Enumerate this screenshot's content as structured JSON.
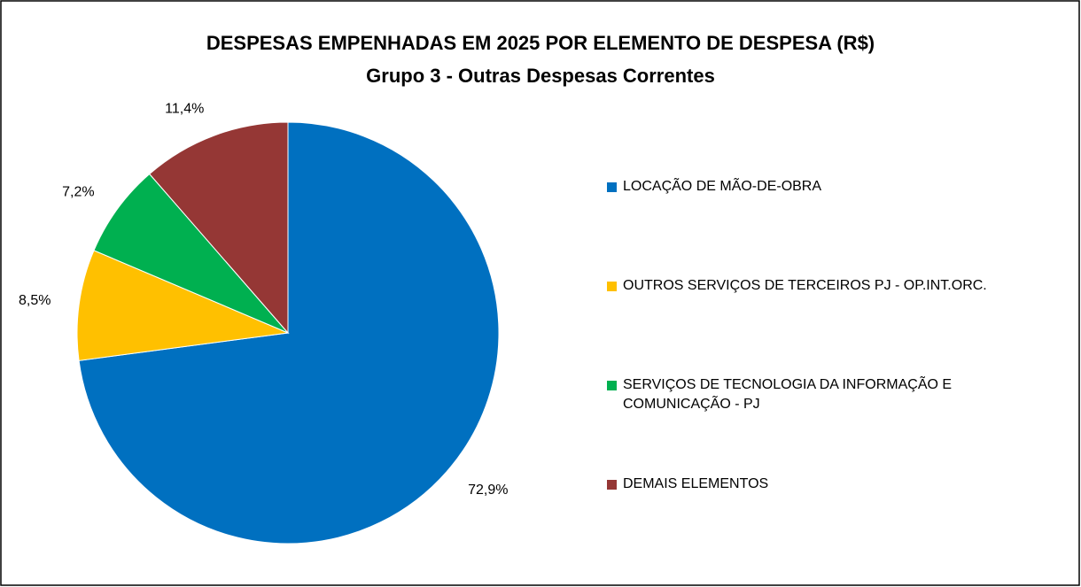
{
  "chart_data": {
    "type": "pie",
    "title": "DESPESAS EMPENHADAS EM 2025 POR ELEMENTO DE DESPESA (R$)",
    "subtitle": "Grupo 3 - Outras Despesas Correntes",
    "categories": [
      "LOCAÇÃO DE MÃO-DE-OBRA",
      "OUTROS SERVIÇOS DE TERCEIROS PJ - OP.INT.ORC.",
      "SERVIÇOS DE TECNOLOGIA DA INFORMAÇÃO E COMUNICAÇÃO - PJ",
      "DEMAIS ELEMENTOS"
    ],
    "values": [
      72.9,
      8.5,
      7.2,
      11.4
    ],
    "value_labels": [
      "72,9%",
      "8,5%",
      "7,2%",
      "11,4%"
    ],
    "colors": [
      "#0070c0",
      "#ffc000",
      "#00b050",
      "#953735"
    ],
    "legend": "right"
  }
}
